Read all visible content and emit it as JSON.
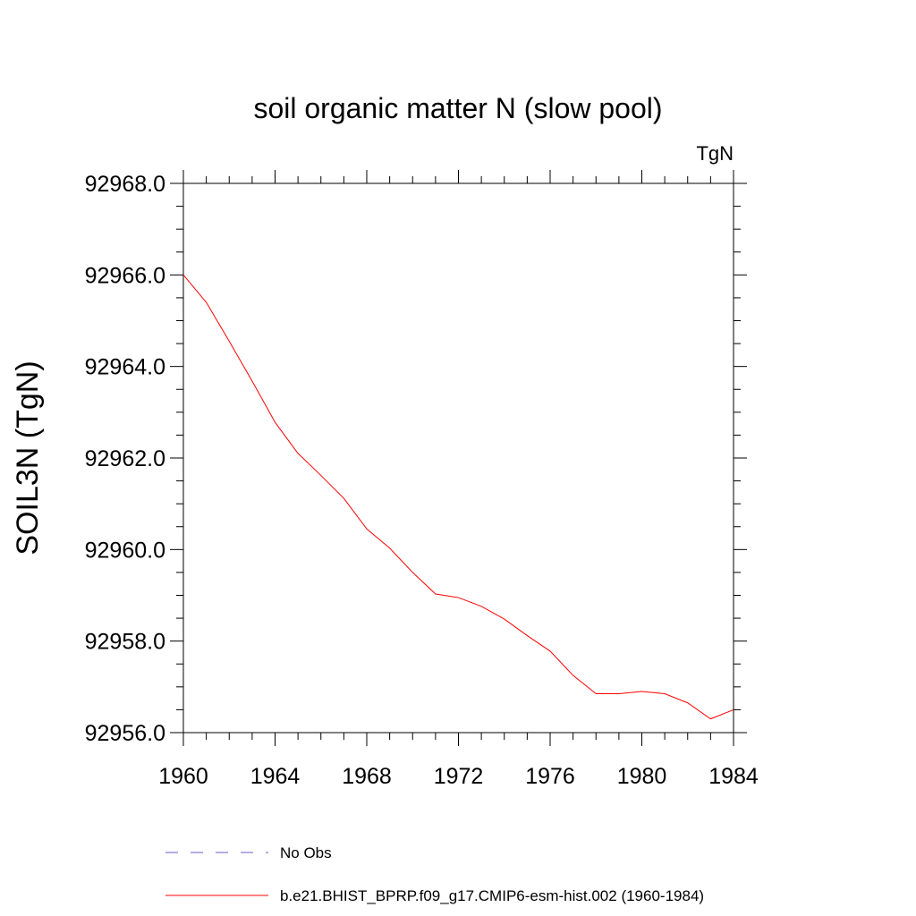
{
  "chart_data": {
    "type": "line",
    "title": "soil organic matter N (slow pool)",
    "units_label": "TgN",
    "xlabel": "",
    "ylabel": "SOIL3N  (TgN)",
    "xlim": [
      1960,
      1984
    ],
    "ylim": [
      92956.0,
      92968.0
    ],
    "x_ticks": [
      "1960",
      "1964",
      "1968",
      "1972",
      "1976",
      "1980",
      "1984"
    ],
    "x_tick_values": [
      1960,
      1964,
      1968,
      1972,
      1976,
      1980,
      1984
    ],
    "y_ticks": [
      "92956.0",
      "92958.0",
      "92960.0",
      "92962.0",
      "92964.0",
      "92966.0",
      "92968.0"
    ],
    "y_tick_values": [
      92956.0,
      92958.0,
      92960.0,
      92962.0,
      92964.0,
      92966.0,
      92968.0
    ],
    "x_minor_step": 1,
    "y_minor_step": 0.5,
    "grid": false,
    "legend_position": "bottom-left",
    "series": [
      {
        "name": "No Obs",
        "color": "#6a5acd",
        "dash": "dashed",
        "values": []
      },
      {
        "name": "b.e21.BHIST_BPRP.f09_g17.CMIP6-esm-hist.002 (1960-1984)",
        "color": "#ff0000",
        "dash": "solid",
        "x": [
          1960,
          1961,
          1962,
          1963,
          1964,
          1965,
          1966,
          1967,
          1968,
          1969,
          1970,
          1971,
          1972,
          1973,
          1974,
          1975,
          1976,
          1977,
          1978,
          1979,
          1980,
          1981,
          1982,
          1983,
          1984
        ],
        "values": [
          92966.0,
          92965.4,
          92964.55,
          92963.68,
          92962.78,
          92962.1,
          92961.62,
          92961.12,
          92960.45,
          92960.03,
          92959.5,
          92959.03,
          92958.95,
          92958.76,
          92958.48,
          92958.12,
          92957.78,
          92957.25,
          92956.85,
          92956.85,
          92956.9,
          92956.85,
          92956.65,
          92956.3,
          92956.5
        ]
      }
    ]
  }
}
